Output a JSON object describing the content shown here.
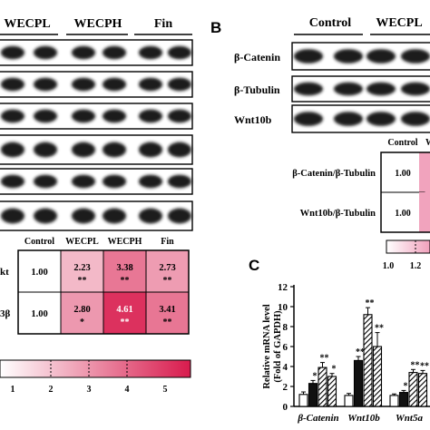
{
  "panelA": {
    "group_labels": [
      "WECPL",
      "WECPH",
      "Fin"
    ],
    "heatmap": {
      "columns": [
        "Control",
        "WECPL",
        "WECPH",
        "Fin"
      ],
      "rows": [
        {
          "label": "kt",
          "values": [
            "1.00",
            "2.23",
            "3.38",
            "2.73"
          ],
          "marks": [
            "",
            "**",
            "**",
            "**"
          ],
          "numeric": [
            1.0,
            2.23,
            3.38,
            2.73
          ]
        },
        {
          "label": "3β",
          "values": [
            "1.00",
            "2.80",
            "4.61",
            "3.41"
          ],
          "marks": [
            "",
            "*",
            "**",
            "**"
          ],
          "numeric": [
            1.0,
            2.8,
            4.61,
            3.41
          ]
        }
      ]
    },
    "colorbar": {
      "ticks": [
        "1",
        "2",
        "3",
        "4",
        "5"
      ],
      "min": 1,
      "max": 5,
      "low_color": "#ffffff",
      "high_color": "#d81b4d"
    }
  },
  "panelB": {
    "letter": "B",
    "group_labels": [
      "Control",
      "WECPL"
    ],
    "blot_labels": [
      "β-Catenin",
      "β-Tubulin",
      "Wnt10b"
    ],
    "heatmap": {
      "column_header": "Control",
      "partial_header": "W",
      "rows": [
        {
          "label": "β-Catenin/β-Tubulin",
          "value": "1.00"
        },
        {
          "label": "Wnt10b/β-Tubulin",
          "value": "1.00"
        }
      ]
    },
    "colorbar": {
      "ticks": [
        "1.0",
        "1.2"
      ]
    }
  },
  "panelC": {
    "letter": "C",
    "chart_data": {
      "type": "bar",
      "ylabel": "Relative mRNA level\n(Fold of GAPDH)",
      "ylim": [
        0,
        12
      ],
      "yticks": [
        "0",
        "2",
        "4",
        "6",
        "8",
        "10",
        "12"
      ],
      "categories": [
        "β-Catenin",
        "Wnt10b",
        "Wnt5a"
      ],
      "series": [
        {
          "values": [
            1.2,
            1.1,
            1.1
          ],
          "errors": [
            0.25,
            0.2,
            0.15
          ],
          "marks": [
            "",
            "",
            ""
          ]
        },
        {
          "values": [
            2.3,
            4.6,
            1.4
          ],
          "errors": [
            0.3,
            0.4,
            0.2
          ],
          "marks": [
            "*",
            "**",
            "*"
          ]
        },
        {
          "values": [
            3.9,
            9.2,
            3.4
          ],
          "errors": [
            0.5,
            0.7,
            0.3
          ],
          "marks": [
            "**",
            "**",
            "**"
          ]
        },
        {
          "values": [
            3.0,
            6.0,
            3.3
          ],
          "errors": [
            0.3,
            1.4,
            0.3
          ],
          "marks": [
            "*",
            "**",
            "**"
          ]
        }
      ]
    }
  }
}
